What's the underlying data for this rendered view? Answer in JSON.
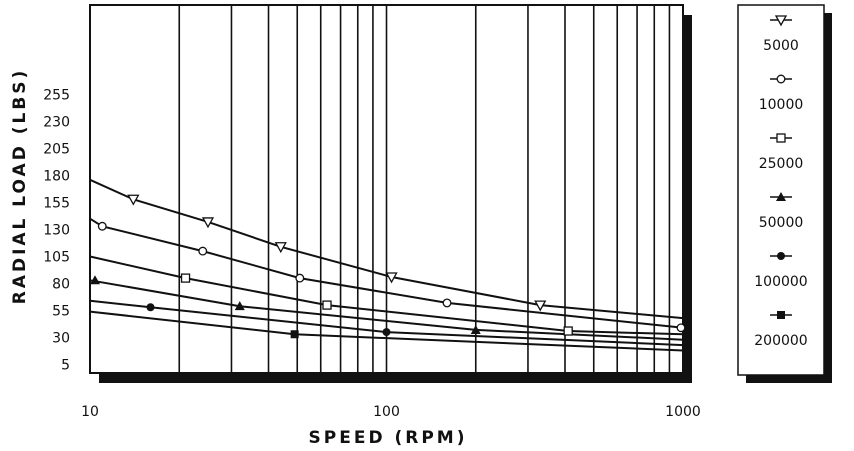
{
  "chart_data": {
    "type": "line",
    "xscale": "log",
    "xlabel": "SPEED (RPM)",
    "ylabel": "RADIAL LOAD (LBS)",
    "xlim": [
      10,
      1000
    ],
    "ylim": [
      0,
      270
    ],
    "x_ticks": [
      "10",
      "100",
      "1000"
    ],
    "y_ticks": [
      "255",
      "230",
      "205",
      "180",
      "155",
      "130",
      "105",
      "80",
      "55",
      "30",
      "5"
    ],
    "grid": "vertical log decade lines",
    "legend": "right",
    "series": [
      {
        "name": "5000",
        "marker": "triangle-down-open",
        "x": [
          10,
          14,
          25,
          44,
          104,
          330,
          1000
        ],
        "y": [
          176,
          158,
          137,
          114,
          86,
          60,
          48
        ]
      },
      {
        "name": "10000",
        "marker": "circle-open",
        "x": [
          10,
          11,
          24,
          51,
          160,
          1000
        ],
        "y": [
          140,
          133,
          110,
          85,
          62,
          39
        ]
      },
      {
        "name": "25000",
        "marker": "square-open",
        "x": [
          10,
          21,
          63,
          410,
          1000
        ],
        "y": [
          105,
          85,
          60,
          36,
          33
        ]
      },
      {
        "name": "50000",
        "marker": "triangle-up-filled",
        "x": [
          10,
          32,
          200,
          1000
        ],
        "y": [
          83,
          59,
          37,
          28
        ]
      },
      {
        "name": "100000",
        "marker": "circle-filled",
        "x": [
          10,
          16,
          100,
          1000
        ],
        "y": [
          64,
          58,
          35,
          23
        ]
      },
      {
        "name": "200000",
        "marker": "square-filled",
        "x": [
          10,
          49,
          1000
        ],
        "y": [
          54,
          33,
          18
        ]
      }
    ]
  }
}
